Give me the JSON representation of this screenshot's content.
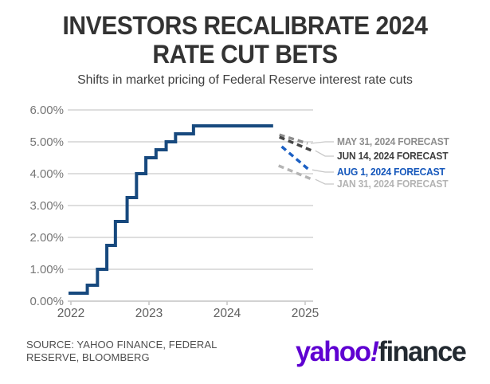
{
  "header": {
    "title_line1": "INVESTORS RECALIBRATE 2024",
    "title_line2": "RATE CUT BETS",
    "subtitle": "Shifts in market pricing of Federal Reserve interest rate cuts"
  },
  "chart_data": {
    "type": "line",
    "subtype": "step line with dashed forecast segments",
    "grid": "horizontal",
    "legend_position": "right-annotations",
    "x_axis": {
      "ticks": [
        2022,
        2023,
        2024,
        2025
      ],
      "range": [
        2021.95,
        2025.1
      ]
    },
    "y_axis": {
      "tick_values": [
        0,
        1,
        2,
        3,
        4,
        5,
        6
      ],
      "tick_labels": [
        "0.00%",
        "1.00%",
        "2.00%",
        "3.00%",
        "4.00%",
        "5.00%",
        "6.00%"
      ],
      "range": [
        0,
        6
      ]
    },
    "series": [
      {
        "name": "fed-funds-target-rate",
        "style": "step-solid",
        "color": "#17497E",
        "points": [
          [
            2022.0,
            0.25
          ],
          [
            2022.21,
            0.5
          ],
          [
            2022.34,
            1.0
          ],
          [
            2022.46,
            1.75
          ],
          [
            2022.57,
            2.5
          ],
          [
            2022.72,
            3.25
          ],
          [
            2022.84,
            4.0
          ],
          [
            2022.96,
            4.5
          ],
          [
            2023.09,
            4.75
          ],
          [
            2023.22,
            5.0
          ],
          [
            2023.34,
            5.25
          ],
          [
            2023.57,
            5.5
          ],
          [
            2024.59,
            5.5
          ]
        ]
      },
      {
        "name": "may-31-forecast",
        "label": "MAY 31, 2024 FORECAST",
        "style": "dashed",
        "color": "#8D8D8D",
        "label_color": "#8D8D8D",
        "points": [
          [
            2024.67,
            5.22
          ],
          [
            2025.03,
            4.95
          ]
        ]
      },
      {
        "name": "jun-14-forecast",
        "label": "JUN 14, 2024 FORECAST",
        "style": "dashed",
        "color": "#464646",
        "label_color": "#3E3E3E",
        "points": [
          [
            2024.67,
            5.15
          ],
          [
            2025.09,
            4.72
          ]
        ]
      },
      {
        "name": "aug-1-forecast",
        "label": "AUG 1, 2024 FORECAST",
        "style": "dashed",
        "color": "#1B5FC3",
        "label_color": "#1557BB",
        "points": [
          [
            2024.7,
            4.85
          ],
          [
            2025.05,
            4.12
          ]
        ]
      },
      {
        "name": "jan-31-forecast",
        "label": "JAN 31, 2024 FORECAST",
        "style": "dashed",
        "color": "#B5B5B5",
        "label_color": "#B3B3B3",
        "points": [
          [
            2024.66,
            4.25
          ],
          [
            2025.09,
            3.82
          ]
        ]
      }
    ],
    "annotation_label_centers_y": [
      178,
      196,
      216,
      231
    ],
    "colors": {
      "gridline": "#D4D4D4",
      "axis": "#C4C4C4",
      "y_tick_text": "#767676",
      "x_tick_text": "#5F5F5F",
      "connector": "#C8C8C8"
    }
  },
  "footer": {
    "source": "SOURCE: YAHOO FINANCE, FEDERAL RESERVE, BLOOMBERG",
    "logo_yahoo": "yahoo",
    "logo_bang": "!",
    "logo_finance": "finance",
    "logo_purple": "#5F01D1",
    "logo_dark": "#232A31"
  }
}
